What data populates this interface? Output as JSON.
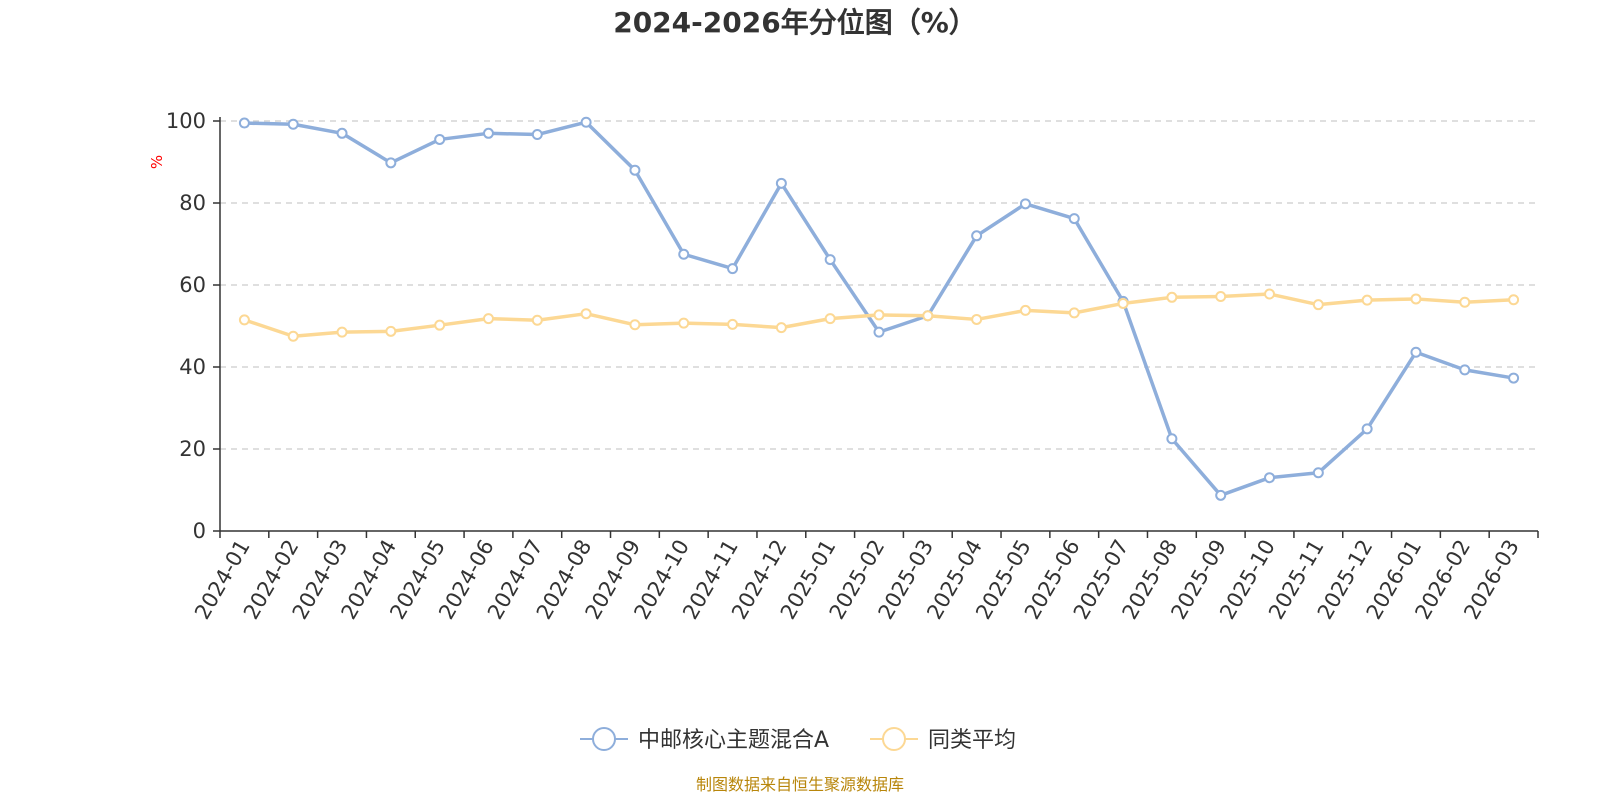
{
  "chart_data": {
    "type": "line",
    "title": "2024-2026年分位图（%）",
    "ylabel": "%",
    "ylim": [
      0,
      100
    ],
    "yticks": [
      "0",
      "20",
      "40",
      "60",
      "80",
      "100"
    ],
    "grid": true,
    "legend_position": "bottom",
    "categories": [
      "2024-01",
      "2024-02",
      "2024-03",
      "2024-04",
      "2024-05",
      "2024-06",
      "2024-07",
      "2024-08",
      "2024-09",
      "2024-10",
      "2024-11",
      "2024-12",
      "2025-01",
      "2025-02",
      "2025-03",
      "2025-04",
      "2025-05",
      "2025-06",
      "2025-07",
      "2025-08",
      "2025-09",
      "2025-10",
      "2025-11",
      "2025-12",
      "2026-01",
      "2026-02",
      "2026-03"
    ],
    "series": [
      {
        "name": "中邮核心主题混合A",
        "color": "#8eaedb",
        "values": [
          99.5,
          99.2,
          97.0,
          89.8,
          95.5,
          97.0,
          96.7,
          99.7,
          88.0,
          67.5,
          64.0,
          84.8,
          66.2,
          48.5,
          52.5,
          72.0,
          79.8,
          76.2,
          56.0,
          22.5,
          8.7,
          13.0,
          14.2,
          24.9,
          43.6,
          39.3,
          37.3
        ]
      },
      {
        "name": "同类平均",
        "color": "#fcd894",
        "values": [
          51.5,
          47.5,
          48.5,
          48.7,
          50.2,
          51.8,
          51.4,
          53.0,
          50.3,
          50.7,
          50.4,
          49.6,
          51.8,
          52.7,
          52.5,
          51.6,
          53.8,
          53.2,
          55.5,
          57.0,
          57.2,
          57.8,
          55.2,
          56.3,
          56.6,
          55.8,
          56.4
        ]
      }
    ]
  },
  "source_text": "制图数据来自恒生聚源数据库"
}
